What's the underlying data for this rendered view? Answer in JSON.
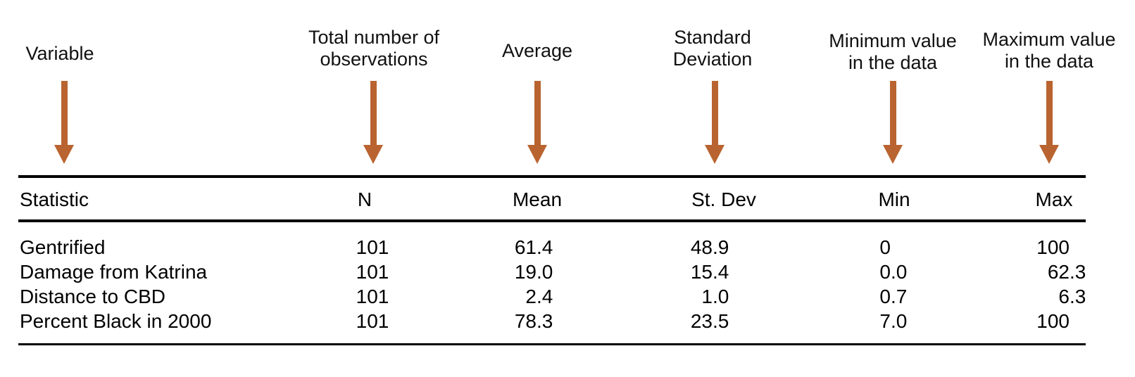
{
  "accent_color": "#B96430",
  "annotations": [
    {
      "id": "variable",
      "lines": [
        "Variable"
      ]
    },
    {
      "id": "total-obs",
      "lines": [
        "Total number of",
        "observations"
      ]
    },
    {
      "id": "average",
      "lines": [
        "Average"
      ]
    },
    {
      "id": "std-deviation",
      "lines": [
        "Standard",
        "Deviation"
      ]
    },
    {
      "id": "minimum-value",
      "lines": [
        "Minimum value",
        "in the data"
      ]
    },
    {
      "id": "maximum-value",
      "lines": [
        "Maximum value",
        "in the data"
      ]
    }
  ],
  "table": {
    "columns": [
      "Statistic",
      "N",
      "Mean",
      "St. Dev",
      "Min",
      "Max"
    ],
    "rows": [
      {
        "statistic": "Gentrified",
        "n": "101",
        "mean": "61.4",
        "st_dev": "48.9",
        "min": "0",
        "max": "100"
      },
      {
        "statistic": "Damage from Katrina",
        "n": "101",
        "mean": "19.0",
        "st_dev": "15.4",
        "min": "0.0",
        "max": "62.3"
      },
      {
        "statistic": "Distance to CBD",
        "n": "101",
        "mean": "2.4",
        "st_dev": "1.0",
        "min": "0.7",
        "max": "6.3"
      },
      {
        "statistic": "Percent Black in 2000",
        "n": "101",
        "mean": "78.3",
        "st_dev": "23.5",
        "min": "7.0",
        "max": "100"
      }
    ]
  }
}
